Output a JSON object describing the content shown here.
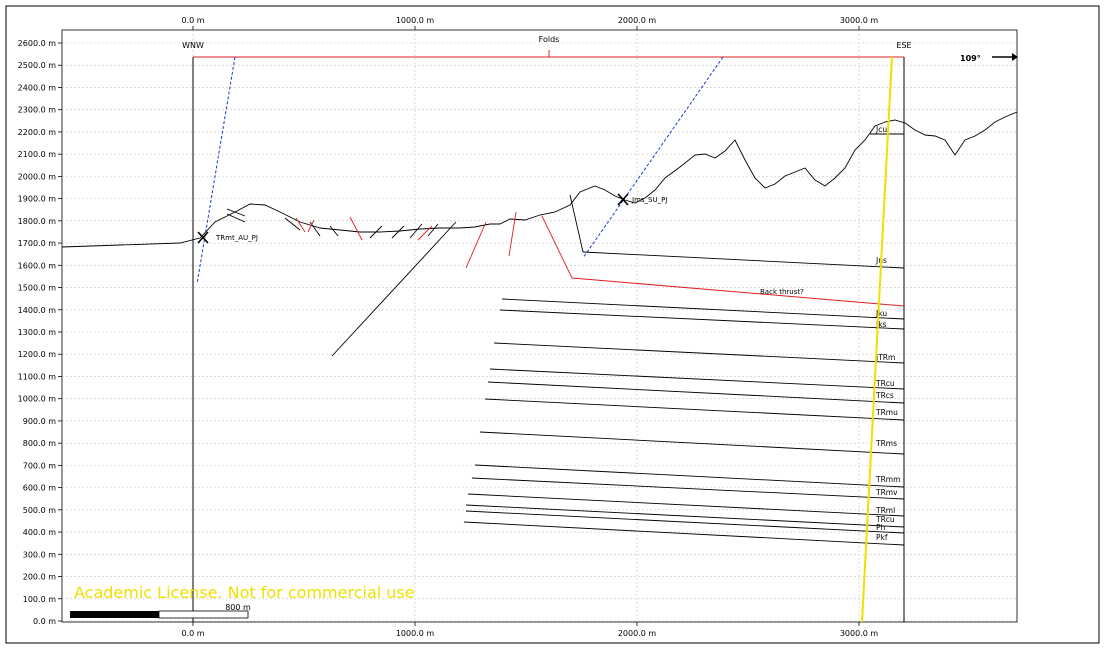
{
  "window": {
    "panel_border_color": "#000000"
  },
  "axes": {
    "x_ticks": [
      "0.0 m",
      "1000.0 m",
      "2000.0 m",
      "3000.0 m"
    ],
    "y_ticks": [
      "2600.0 m",
      "2500.0 m",
      "2400.0 m",
      "2300.0 m",
      "2200.0 m",
      "2100.0 m",
      "2000.0 m",
      "1900.0 m",
      "1800.0 m",
      "1700.0 m",
      "1600.0 m",
      "1500.0 m",
      "1400.0 m",
      "1300.0 m",
      "1200.0 m",
      "1100.0 m",
      "1000.0 m",
      "900.0 m",
      "800.0 m",
      "700.0 m",
      "600.0 m",
      "500.0 m",
      "400.0 m",
      "300.0 m",
      "200.0 m",
      "100.0 m",
      "0.0 m"
    ]
  },
  "section": {
    "left_end": "WNW",
    "right_end": "ESE",
    "folds_label": "Folds",
    "azimuth": "109°",
    "fold_line_color": "#e02020",
    "fault_color": "#e02020",
    "trace_color": "#1a3ad6",
    "highlight_line_color": "#f0e000"
  },
  "points": [
    {
      "label": "TRmt_AU_PJ"
    },
    {
      "label": "Jms_SU_PJ"
    }
  ],
  "horizons": {
    "labels": [
      "Jcu",
      "Jns",
      "Jku",
      "Jks",
      "JTRm",
      "TRcu",
      "TRcs",
      "TRmu",
      "TRms",
      "TRmm",
      "TRmv",
      "TRml",
      "TRcu",
      "Ph",
      "Pkf"
    ],
    "back_thrust": "Back thrust?"
  },
  "watermark": {
    "text": "Academic License. Not for commercial use",
    "color": "#f0e000"
  },
  "scale_bar": {
    "label": "800 m"
  }
}
